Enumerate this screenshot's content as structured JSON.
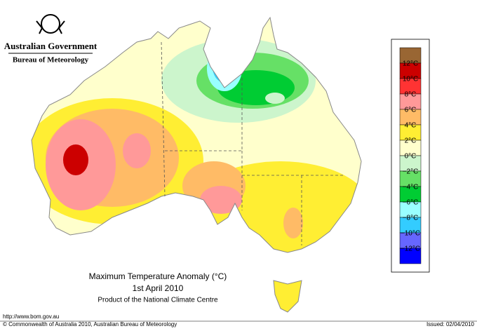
{
  "header": {
    "government": "Australian Government",
    "bureau": "Bureau of Meteorology"
  },
  "legend": {
    "items": [
      {
        "color": "#996633"
      },
      {
        "label": "12°C",
        "color": "#cc0000"
      },
      {
        "label": "10°C",
        "color": "#ff3333"
      },
      {
        "label": "8°C",
        "color": "#ff9999"
      },
      {
        "label": "6°C",
        "color": "#ffbb66"
      },
      {
        "label": "4°C",
        "color": "#ffee33"
      },
      {
        "label": "2°C",
        "color": "#ffffcc"
      },
      {
        "label": "0°C",
        "color": "#ccf5cc"
      },
      {
        "label": "−2°C",
        "color": "#66e066"
      },
      {
        "label": "−4°C",
        "color": "#00cc33"
      },
      {
        "label": "−6°C",
        "color": "#99ffff"
      },
      {
        "label": "−8°C",
        "color": "#33ccff"
      },
      {
        "label": "−10°C",
        "color": "#6666ff"
      },
      {
        "label": "−12°C",
        "color": "#0000ff"
      }
    ]
  },
  "title": {
    "line1": "Maximum Temperature Anomaly (°C)",
    "line2": "1st April 2010",
    "line3": "Product of the National Climate Centre"
  },
  "footer": {
    "url": "http://www.bom.gov.au",
    "copyright": "© Commonwealth of Australia 2010, Australian Bureau of Meteorology",
    "issued": "Issued: 02/04/2010"
  }
}
